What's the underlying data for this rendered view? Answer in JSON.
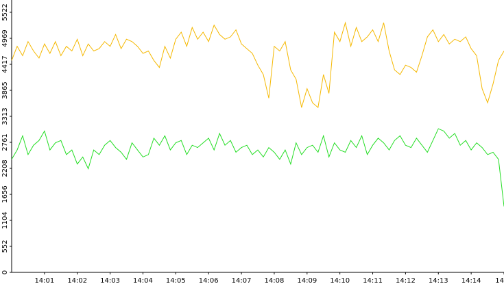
{
  "chart_data": {
    "type": "line",
    "x": [
      0,
      10,
      20,
      30,
      40,
      50,
      60,
      70,
      80,
      90,
      100,
      110,
      120,
      130,
      140,
      150,
      160,
      170,
      180,
      190,
      200,
      210,
      220,
      230,
      240,
      250,
      260,
      270,
      280,
      290,
      300,
      310,
      320,
      330,
      340,
      350,
      360,
      370,
      380,
      390,
      400,
      410,
      420,
      430,
      440,
      450,
      460,
      470,
      480,
      490,
      500,
      510,
      520,
      530,
      540,
      550,
      560,
      570,
      580,
      590,
      600,
      610,
      620,
      630,
      640,
      650,
      660,
      670,
      680,
      690,
      700,
      710,
      720,
      730,
      740,
      750,
      760,
      770,
      780,
      790,
      800,
      810,
      820,
      830,
      840,
      850,
      860,
      870,
      880,
      890,
      900
    ],
    "series": [
      {
        "color": "#f5b800",
        "values": [
          4500,
          4800,
          4600,
          4900,
          4700,
          4550,
          4850,
          4650,
          4900,
          4600,
          4800,
          4700,
          4950,
          4600,
          4850,
          4700,
          4750,
          4900,
          4800,
          5050,
          4750,
          4950,
          4900,
          4800,
          4650,
          4700,
          4500,
          4350,
          4800,
          4550,
          4950,
          5100,
          4800,
          5200,
          4950,
          5100,
          4900,
          5250,
          5050,
          4950,
          5000,
          5150,
          4850,
          4750,
          4650,
          4400,
          4200,
          3700,
          4800,
          4700,
          4900,
          4300,
          4100,
          3500,
          3900,
          3600,
          3500,
          4200,
          3800,
          5100,
          4900,
          5300,
          4800,
          5200,
          4900,
          5000,
          5150,
          4900,
          5300,
          4700,
          4300,
          4200,
          4400,
          4350,
          4250,
          4600,
          5000,
          5150,
          4900,
          5050,
          4850,
          4950,
          4900,
          5000,
          4750,
          4600,
          3900,
          3600,
          4000,
          4500,
          4700
        ]
      },
      {
        "color": "#22dd22",
        "values": [
          2400,
          2600,
          2900,
          2500,
          2700,
          2800,
          3000,
          2600,
          2750,
          2800,
          2500,
          2600,
          2300,
          2450,
          2200,
          2600,
          2500,
          2700,
          2800,
          2650,
          2550,
          2400,
          2750,
          2600,
          2450,
          2500,
          2850,
          2700,
          2900,
          2600,
          2750,
          2800,
          2500,
          2700,
          2650,
          2750,
          2850,
          2600,
          2950,
          2700,
          2800,
          2550,
          2650,
          2700,
          2500,
          2600,
          2450,
          2650,
          2550,
          2400,
          2600,
          2300,
          2750,
          2500,
          2650,
          2700,
          2550,
          2900,
          2450,
          2750,
          2600,
          2550,
          2800,
          2650,
          2900,
          2500,
          2700,
          2850,
          2750,
          2600,
          2800,
          2900,
          2700,
          2650,
          2850,
          2700,
          2550,
          2800,
          3050,
          3000,
          2850,
          2950,
          2700,
          2800,
          2600,
          2750,
          2650,
          2500,
          2550,
          2400,
          1400
        ]
      }
    ],
    "xlim": [
      0,
      900
    ],
    "xticks": [
      {
        "value": 60,
        "label": "14:01"
      },
      {
        "value": 120,
        "label": "14:02"
      },
      {
        "value": 180,
        "label": "14:03"
      },
      {
        "value": 240,
        "label": "14:04"
      },
      {
        "value": 300,
        "label": "14:05"
      },
      {
        "value": 360,
        "label": "14:06"
      },
      {
        "value": 420,
        "label": "14:07"
      },
      {
        "value": 480,
        "label": "14:08"
      },
      {
        "value": 540,
        "label": "14:09"
      },
      {
        "value": 600,
        "label": "14:10"
      },
      {
        "value": 660,
        "label": "14:11"
      },
      {
        "value": 720,
        "label": "14:12"
      },
      {
        "value": 780,
        "label": "14:13"
      },
      {
        "value": 840,
        "label": "14:14"
      },
      {
        "value": 900,
        "label": "14"
      }
    ],
    "ylim": [
      0,
      5783
    ],
    "yticks": [
      0,
      552,
      1104,
      1656,
      2208,
      2761,
      3313,
      3865,
      4417,
      4969,
      5522
    ]
  }
}
